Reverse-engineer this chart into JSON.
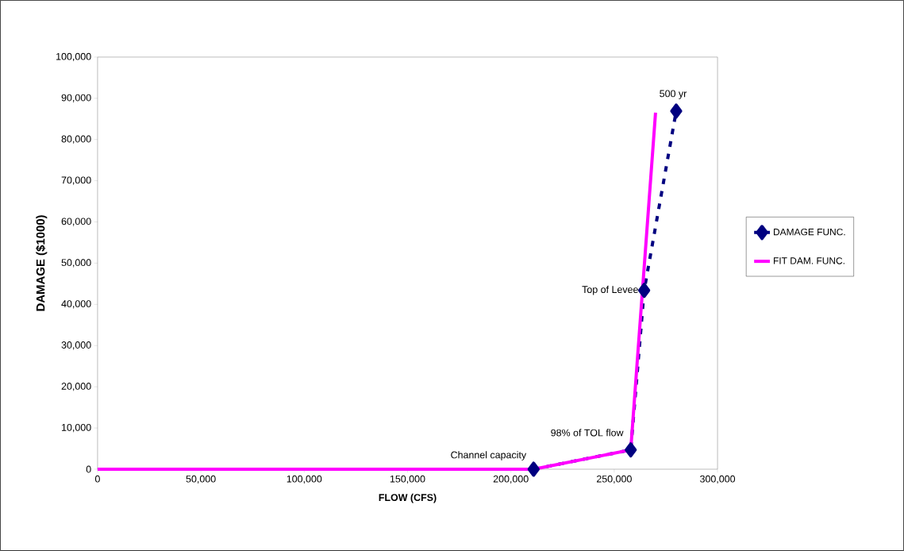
{
  "chart_data": {
    "type": "line",
    "xlabel": "FLOW (CFS)",
    "ylabel": "DAMAGE ($1000)",
    "xlim": [
      0,
      300000
    ],
    "ylim": [
      0,
      100000
    ],
    "xticks": [
      {
        "value": 0,
        "label": "0"
      },
      {
        "value": 50000,
        "label": "50,000"
      },
      {
        "value": 100000,
        "label": "100,000"
      },
      {
        "value": 150000,
        "label": "150,000"
      },
      {
        "value": 200000,
        "label": "200,000"
      },
      {
        "value": 250000,
        "label": "250,000"
      },
      {
        "value": 300000,
        "label": "300,000"
      }
    ],
    "yticks": [
      {
        "value": 0,
        "label": "0"
      },
      {
        "value": 10000,
        "label": "10,000"
      },
      {
        "value": 20000,
        "label": "20,000"
      },
      {
        "value": 30000,
        "label": "30,000"
      },
      {
        "value": 40000,
        "label": "40,000"
      },
      {
        "value": 50000,
        "label": "50,000"
      },
      {
        "value": 60000,
        "label": "60,000"
      },
      {
        "value": 70000,
        "label": "70,000"
      },
      {
        "value": 80000,
        "label": "80,000"
      },
      {
        "value": 90000,
        "label": "90,000"
      },
      {
        "value": 100000,
        "label": "100,000"
      }
    ],
    "series": [
      {
        "name": "DAMAGE FUNC.",
        "color": "#000080",
        "marker": "diamond",
        "line_style": "dashed",
        "x": [
          211000,
          258000,
          264500,
          280000
        ],
        "values": [
          0,
          4700,
          43400,
          86900
        ]
      },
      {
        "name": "FIT DAM. FUNC.",
        "color": "#ff00ff",
        "marker": "none",
        "line_style": "solid",
        "x": [
          0,
          211000,
          258000,
          270000
        ],
        "values": [
          0,
          0,
          4700,
          86500
        ]
      }
    ],
    "annotations": [
      {
        "text": "Channel capacity",
        "x": 211000,
        "y": 0
      },
      {
        "text": "98% of TOL flow",
        "x": 258000,
        "y": 4700
      },
      {
        "text": "Top of Levee",
        "x": 264500,
        "y": 43400
      },
      {
        "text": "500 yr",
        "x": 280000,
        "y": 86900
      }
    ],
    "legend": "right",
    "grid": false
  }
}
